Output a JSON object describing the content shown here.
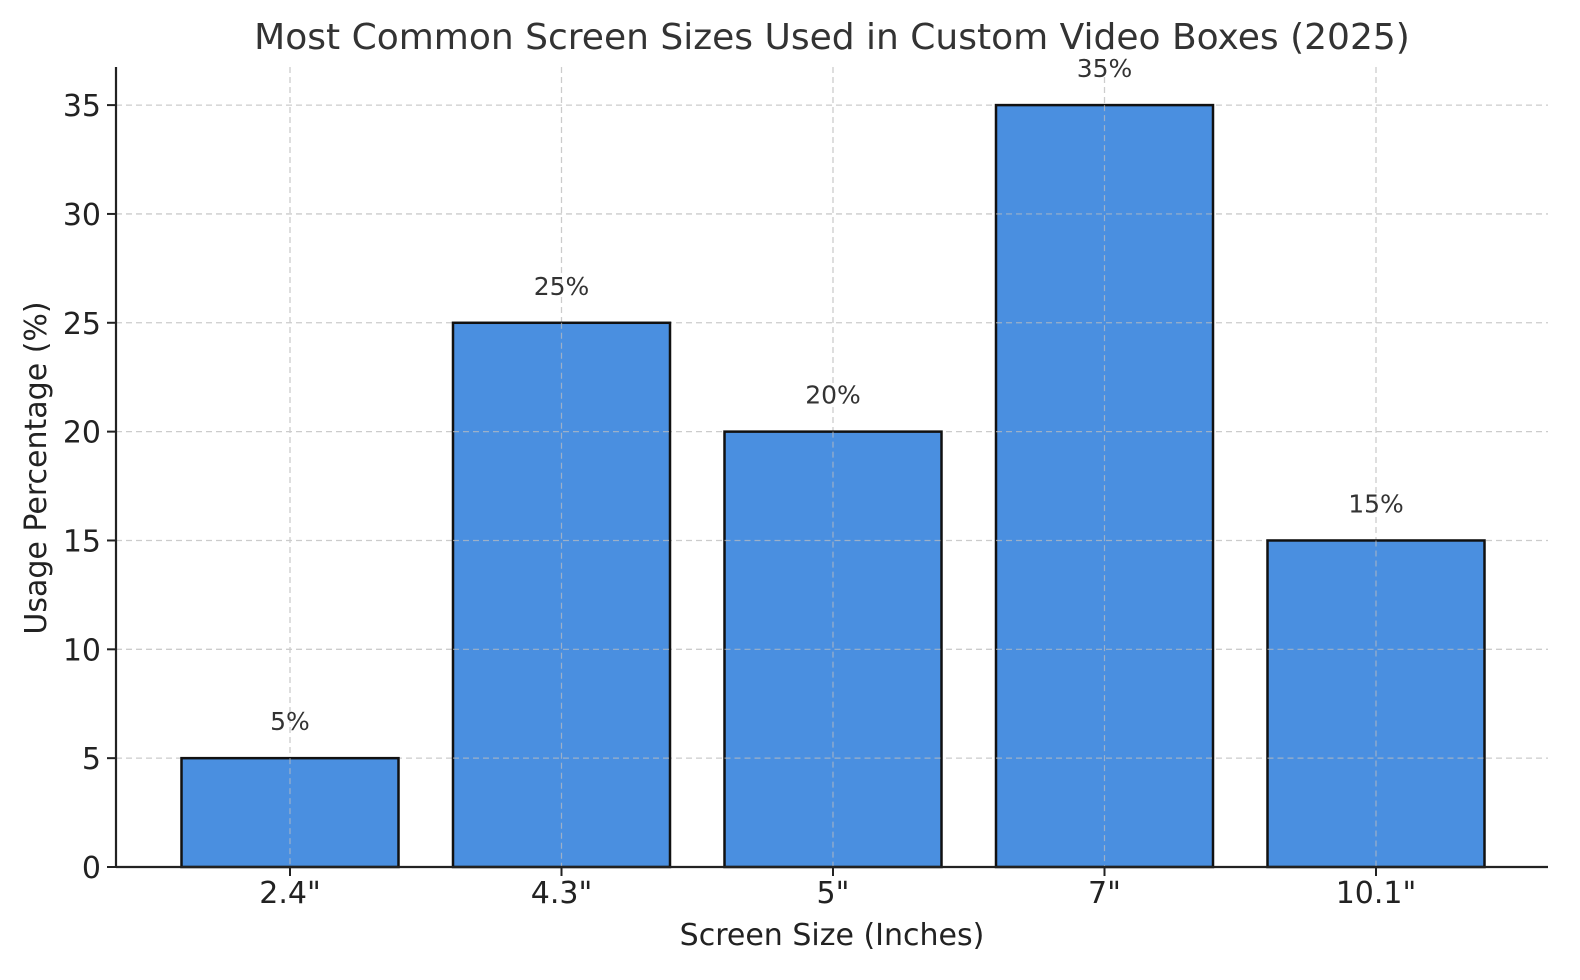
{
  "chart_data": {
    "type": "bar",
    "title": "Most Common Screen Sizes Used in Custom Video Boxes (2025)",
    "xlabel": "Screen Size (Inches)",
    "ylabel": "Usage Percentage (%)",
    "categories": [
      "2.4\"",
      "4.3\"",
      "5\"",
      "7\"",
      "10.1\""
    ],
    "values": [
      5,
      25,
      20,
      35,
      15
    ],
    "data_labels": [
      "5%",
      "25%",
      "20%",
      "35%",
      "15%"
    ],
    "ylim": [
      0,
      36.75
    ],
    "yticks": [
      0,
      5,
      10,
      15,
      20,
      25,
      30,
      35
    ],
    "grid": true,
    "bar_color": "#4a8fe0",
    "bar_edge_color": "#111111",
    "grid_color": "#cccccc"
  }
}
